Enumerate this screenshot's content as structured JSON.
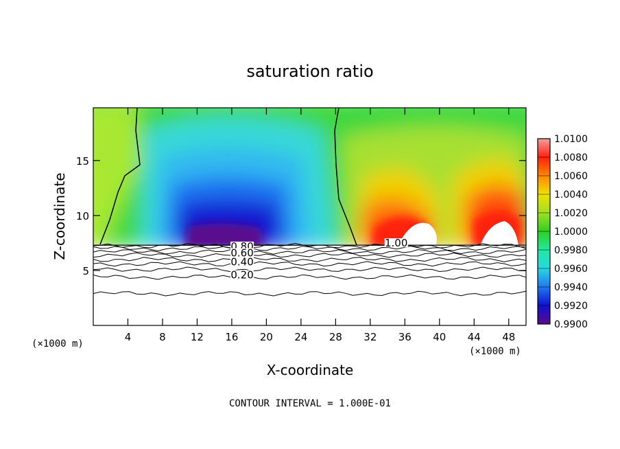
{
  "chart_data": {
    "type": "heatmap",
    "title": "saturation ratio",
    "xlabel": "X-coordinate",
    "ylabel": "Z-coordinate",
    "x_unit": "(×1000 m)",
    "xlim": [
      0,
      50
    ],
    "ylim": [
      0,
      19.8
    ],
    "x_ticks": [
      4,
      8,
      12,
      16,
      20,
      24,
      28,
      32,
      36,
      40,
      44,
      48
    ],
    "y_ticks": [
      5,
      10,
      15
    ],
    "colorbar": {
      "levels": [
        0.99,
        0.992,
        0.994,
        0.996,
        0.998,
        1.0,
        1.002,
        1.004,
        1.006,
        1.008,
        1.01
      ],
      "tick_labels": [
        "0.9900",
        "0.9920",
        "0.9940",
        "0.9960",
        "0.9980",
        "1.0000",
        "1.0020",
        "1.0040",
        "1.0060",
        "1.0080",
        "1.0100"
      ],
      "colors": [
        "#5a0a8c",
        "#1010d0",
        "#1e78f0",
        "#28d8e0",
        "#20e8a0",
        "#30d020",
        "#a0e020",
        "#f0e000",
        "#ff8800",
        "#ff2010",
        "#f0a0a0"
      ]
    },
    "contour_labels": [
      {
        "text": "0.80",
        "x": 17.2,
        "y": 7.0
      },
      {
        "text": "0.60",
        "x": 17.2,
        "y": 6.4
      },
      {
        "text": "0.40",
        "x": 17.2,
        "y": 5.6
      },
      {
        "text": "0.20",
        "x": 17.2,
        "y": 4.4
      },
      {
        "text": "1.00",
        "x": 35.0,
        "y": 7.3
      }
    ],
    "contour_lines_z": [
      2.9,
      4.4,
      5.1,
      5.6,
      6.0,
      6.4,
      6.7,
      7.0,
      7.25
    ],
    "cloud_base_z": 7.3,
    "footer": "CONTOUR INTERVAL = 1.000E-01"
  }
}
